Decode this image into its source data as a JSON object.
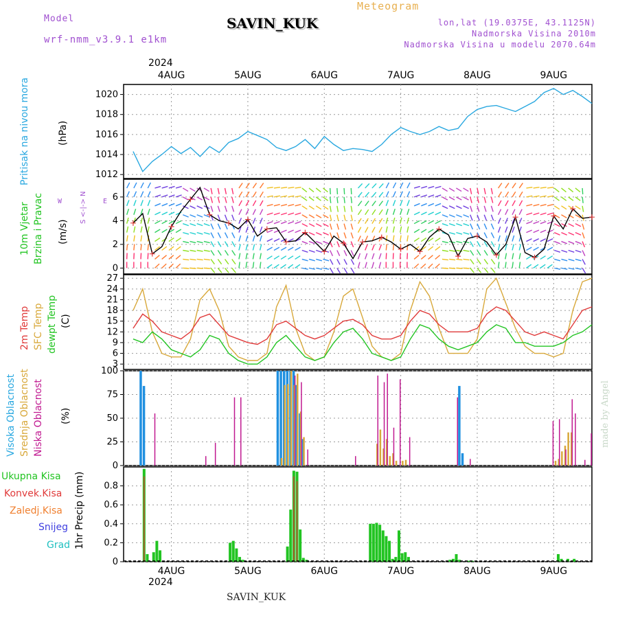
{
  "header": {
    "model_label": "Model",
    "model_name": "wrf-nmm_v3.9.1 e1km",
    "station": "SAVIN_KUK",
    "product": "Meteogram",
    "lonlat": "lon,lat (19.0375E, 43.1125N)",
    "elevation": "Nadmorska Visina 2010m",
    "model_elevation": "Nadmorska Visina u modelu 2070.64m",
    "year": "2024",
    "credit": "made by Angel",
    "footer_station": "SAVIN_KUK"
  },
  "colors": {
    "pressure": "#2aa8e0",
    "wind_speed": "#000000",
    "t2m": "#e03a3a",
    "tsfc": "#d8a83a",
    "dewpt": "#22c422",
    "cloud_high": "#2090e0",
    "cloud_mid": "#d8a83a",
    "cloud_low": "#c01890",
    "rain_total": "#22c422",
    "rain_conv": "#e03a3a",
    "rain_frozen": "#f08030",
    "snow": "#4040e0",
    "graupel": "#20c0c0",
    "axis_label_purple": "#a050d0"
  },
  "axes": {
    "day_labels": [
      "4AUG",
      "5AUG",
      "6AUG",
      "7AUG",
      "8AUG",
      "9AUG"
    ]
  },
  "panels": {
    "pressure": {
      "name": "Pritisak na nivou mora",
      "unit": "(hPa)",
      "ticks": [
        "1012",
        "1014",
        "1016",
        "1018",
        "1020"
      ]
    },
    "wind": {
      "name1": "10m Vjetar",
      "name2": "Brzina i Pravac",
      "unit": "(m/s)",
      "compass_ns": "S <-|-> N",
      "compass_w": "W",
      "compass_e": "E",
      "ticks": [
        "0",
        "2",
        "4",
        "6"
      ]
    },
    "temp": {
      "name1": "2m Temp",
      "name2": "SFC Temp",
      "name3": "dewpt Temp",
      "unit": "(C)",
      "ticks": [
        "3",
        "6",
        "9",
        "12",
        "15",
        "18",
        "21",
        "24",
        "27"
      ]
    },
    "cloud": {
      "name1": "Visoka Oblacnost",
      "name2": "Srednja Oblacnost",
      "name3": "Niska Oblacnost",
      "unit": "(%)",
      "ticks": [
        "0",
        "25",
        "50",
        "75",
        "100"
      ]
    },
    "precip": {
      "legend": [
        "Ukupna Kisa",
        "Konvek.Kisa",
        "Zaledj.Kisa",
        "Snijeg",
        "Grad"
      ],
      "unit": "1hr Precip (mm)",
      "ticks": [
        "0",
        "0.2",
        "0.4",
        "0.6",
        "0.8"
      ]
    }
  },
  "chart_data": [
    {
      "type": "line",
      "ylabel": "(hPa)",
      "ylim": [
        1011.6,
        1021.0
      ],
      "x_hours": [
        0,
        3,
        6,
        9,
        12,
        15,
        18,
        21,
        24,
        27,
        30,
        33,
        36,
        39,
        42,
        45,
        48,
        51,
        54,
        57,
        60,
        63,
        66,
        69,
        72,
        75,
        78,
        81,
        84,
        87,
        90,
        93,
        96,
        99,
        102,
        105,
        108,
        111,
        114,
        117,
        120,
        123,
        126,
        129,
        132,
        135,
        138,
        141,
        144
      ],
      "series": [
        {
          "values": [
            1014.3,
            1012.3,
            1013.3,
            1014.0,
            1014.8,
            1014.1,
            1014.7,
            1013.8,
            1014.8,
            1014.2,
            1015.2,
            1015.6,
            1016.3,
            1015.9,
            1015.5,
            1014.7,
            1014.4,
            1014.8,
            1015.5,
            1014.6,
            1015.8,
            1015.0,
            1014.4,
            1014.6,
            1014.5,
            1014.3,
            1015.0,
            1016.0,
            1016.7,
            1016.3,
            1016.0,
            1016.3,
            1016.8,
            1016.4,
            1016.6,
            1017.8,
            1018.5,
            1018.8,
            1018.9,
            1018.6,
            1018.3,
            1018.8,
            1019.3,
            1020.2,
            1020.6,
            1020.0,
            1020.4,
            1019.8,
            1019.1
          ]
        }
      ],
      "grid": true
    },
    {
      "type": "line",
      "ylabel": "(m/s)",
      "ylim": [
        -0.5,
        7.5
      ],
      "x_hours": [
        0,
        3,
        6,
        9,
        12,
        15,
        18,
        21,
        24,
        27,
        30,
        33,
        36,
        39,
        42,
        45,
        48,
        51,
        54,
        57,
        60,
        63,
        66,
        69,
        72,
        75,
        78,
        81,
        84,
        87,
        90,
        93,
        96,
        99,
        102,
        105,
        108,
        111,
        114,
        117,
        120,
        123,
        126,
        129,
        132,
        135,
        138,
        141,
        144
      ],
      "series": [
        {
          "values": [
            3.8,
            4.6,
            1.2,
            1.8,
            3.5,
            4.8,
            5.8,
            6.8,
            4.5,
            4.0,
            3.8,
            3.3,
            4.1,
            2.7,
            3.3,
            3.4,
            2.2,
            2.3,
            3.0,
            2.2,
            1.4,
            2.7,
            2.1,
            0.8,
            2.2,
            2.3,
            2.6,
            2.2,
            1.6,
            2.0,
            1.4,
            2.6,
            3.3,
            2.8,
            1.0,
            2.5,
            2.7,
            2.2,
            1.1,
            2.0,
            4.3,
            1.3,
            0.9,
            1.6,
            4.4,
            3.3,
            5.0,
            4.2,
            4.3
          ]
        }
      ],
      "grid": true
    },
    {
      "type": "line",
      "ylabel": "(C)",
      "ylim": [
        1.5,
        28
      ],
      "x_hours": [
        0,
        3,
        6,
        9,
        12,
        15,
        18,
        21,
        24,
        27,
        30,
        33,
        36,
        39,
        42,
        45,
        48,
        51,
        54,
        57,
        60,
        63,
        66,
        69,
        72,
        75,
        78,
        81,
        84,
        87,
        90,
        93,
        96,
        99,
        102,
        105,
        108,
        111,
        114,
        117,
        120,
        123,
        126,
        129,
        132,
        135,
        138,
        141,
        144
      ],
      "series": [
        {
          "name": "2m Temp",
          "values": [
            13,
            17,
            15,
            12,
            11,
            10,
            12,
            16,
            17,
            14,
            11,
            10,
            9,
            8.5,
            10,
            14,
            15,
            13,
            11,
            10,
            11,
            13,
            15,
            15.5,
            14,
            11,
            10,
            10,
            11,
            15,
            18,
            17,
            14,
            12,
            12,
            12,
            13,
            17,
            19,
            18,
            15,
            12,
            11,
            12,
            11,
            10,
            14,
            18,
            19
          ]
        },
        {
          "name": "SFC Temp",
          "values": [
            18,
            24,
            12,
            6,
            5,
            5,
            10,
            21,
            24,
            18,
            8,
            5,
            4,
            4,
            6,
            19,
            25,
            13,
            6,
            4,
            5,
            12,
            22,
            24,
            16,
            8,
            5,
            4,
            6,
            18,
            26,
            22,
            13,
            6,
            6,
            6,
            10,
            24,
            27,
            20,
            13,
            8,
            6,
            6,
            5,
            6,
            18,
            26,
            27
          ]
        },
        {
          "name": "dewpt Temp",
          "values": [
            10,
            9,
            12,
            10,
            7,
            6,
            5,
            7,
            11,
            10,
            6,
            4,
            3,
            3,
            5,
            9,
            11,
            8,
            5,
            4,
            5,
            9,
            12,
            13,
            10,
            6,
            5,
            4,
            5,
            10,
            14,
            13,
            10,
            8,
            7,
            8,
            9,
            12,
            14,
            13,
            9,
            9,
            8,
            8,
            8,
            9,
            11,
            12,
            14
          ]
        }
      ],
      "grid": true
    },
    {
      "type": "bar",
      "ylabel": "(%)",
      "ylim": [
        0,
        100
      ],
      "series": [
        {
          "name": "Visoka Oblacnost",
          "x_hours": [
            2,
            3,
            45,
            46,
            47,
            48,
            49,
            50,
            51,
            52,
            53,
            102,
            103
          ],
          "values": [
            100,
            84,
            100,
            100,
            100,
            100,
            100,
            100,
            85,
            55,
            28,
            84,
            13
          ]
        },
        {
          "name": "Srednja Oblacnost",
          "x_hours": [
            46,
            47,
            48,
            49,
            50,
            51,
            52,
            53,
            76,
            77,
            78,
            79,
            80,
            81,
            82,
            84,
            85,
            132,
            133,
            134,
            135,
            136,
            137
          ],
          "values": [
            8,
            85,
            86,
            100,
            85,
            97,
            57,
            30,
            23,
            38,
            18,
            28,
            10,
            13,
            5,
            5,
            6,
            5,
            7,
            15,
            21,
            35,
            35
          ]
        },
        {
          "name": "Niska Oblacnost",
          "x_hours": [
            6,
            22,
            25,
            31,
            33,
            50,
            52,
            54,
            69,
            76,
            78,
            79,
            81,
            83,
            86,
            101,
            105,
            131,
            133,
            135,
            137,
            138,
            141,
            143
          ],
          "values": [
            55,
            10,
            24,
            72,
            72,
            95,
            88,
            17,
            10,
            95,
            88,
            97,
            40,
            91,
            30,
            72,
            7,
            47,
            49,
            17,
            70,
            55,
            6,
            34
          ]
        }
      ],
      "grid": true
    },
    {
      "type": "bar",
      "ylabel": "1hr Precip (mm)",
      "ylim": [
        0,
        1.0
      ],
      "series": [
        {
          "name": "Ukupna Kisa",
          "x_hours": [
            3,
            4,
            6,
            7,
            8,
            30,
            31,
            32,
            33,
            34,
            48,
            49,
            50,
            51,
            52,
            53,
            54,
            74,
            75,
            76,
            77,
            78,
            79,
            80,
            81,
            82,
            83,
            84,
            85,
            86,
            99,
            100,
            101,
            102,
            105,
            106,
            133,
            134,
            136,
            138
          ],
          "values": [
            0.98,
            0.08,
            0.1,
            0.22,
            0.12,
            0.2,
            0.22,
            0.14,
            0.05,
            0.02,
            0.16,
            0.55,
            0.96,
            0.95,
            0.34,
            0.04,
            0.02,
            0.4,
            0.4,
            0.41,
            0.39,
            0.33,
            0.27,
            0.22,
            0.03,
            0.05,
            0.33,
            0.09,
            0.1,
            0.05,
            0.02,
            0.03,
            0.08,
            0.02,
            0.01,
            0.01,
            0.08,
            0.03,
            0.03,
            0.03
          ]
        },
        {
          "name": "Konvek.Kisa",
          "x_hours": [
            3,
            50,
            51
          ],
          "values": [
            0.9,
            0.9,
            0.85
          ]
        },
        {
          "name": "Zaledj.Kisa",
          "x_hours": [],
          "values": []
        },
        {
          "name": "Snijeg",
          "x_hours": [],
          "values": []
        },
        {
          "name": "Grad",
          "x_hours": [],
          "values": []
        }
      ],
      "grid": true
    }
  ]
}
